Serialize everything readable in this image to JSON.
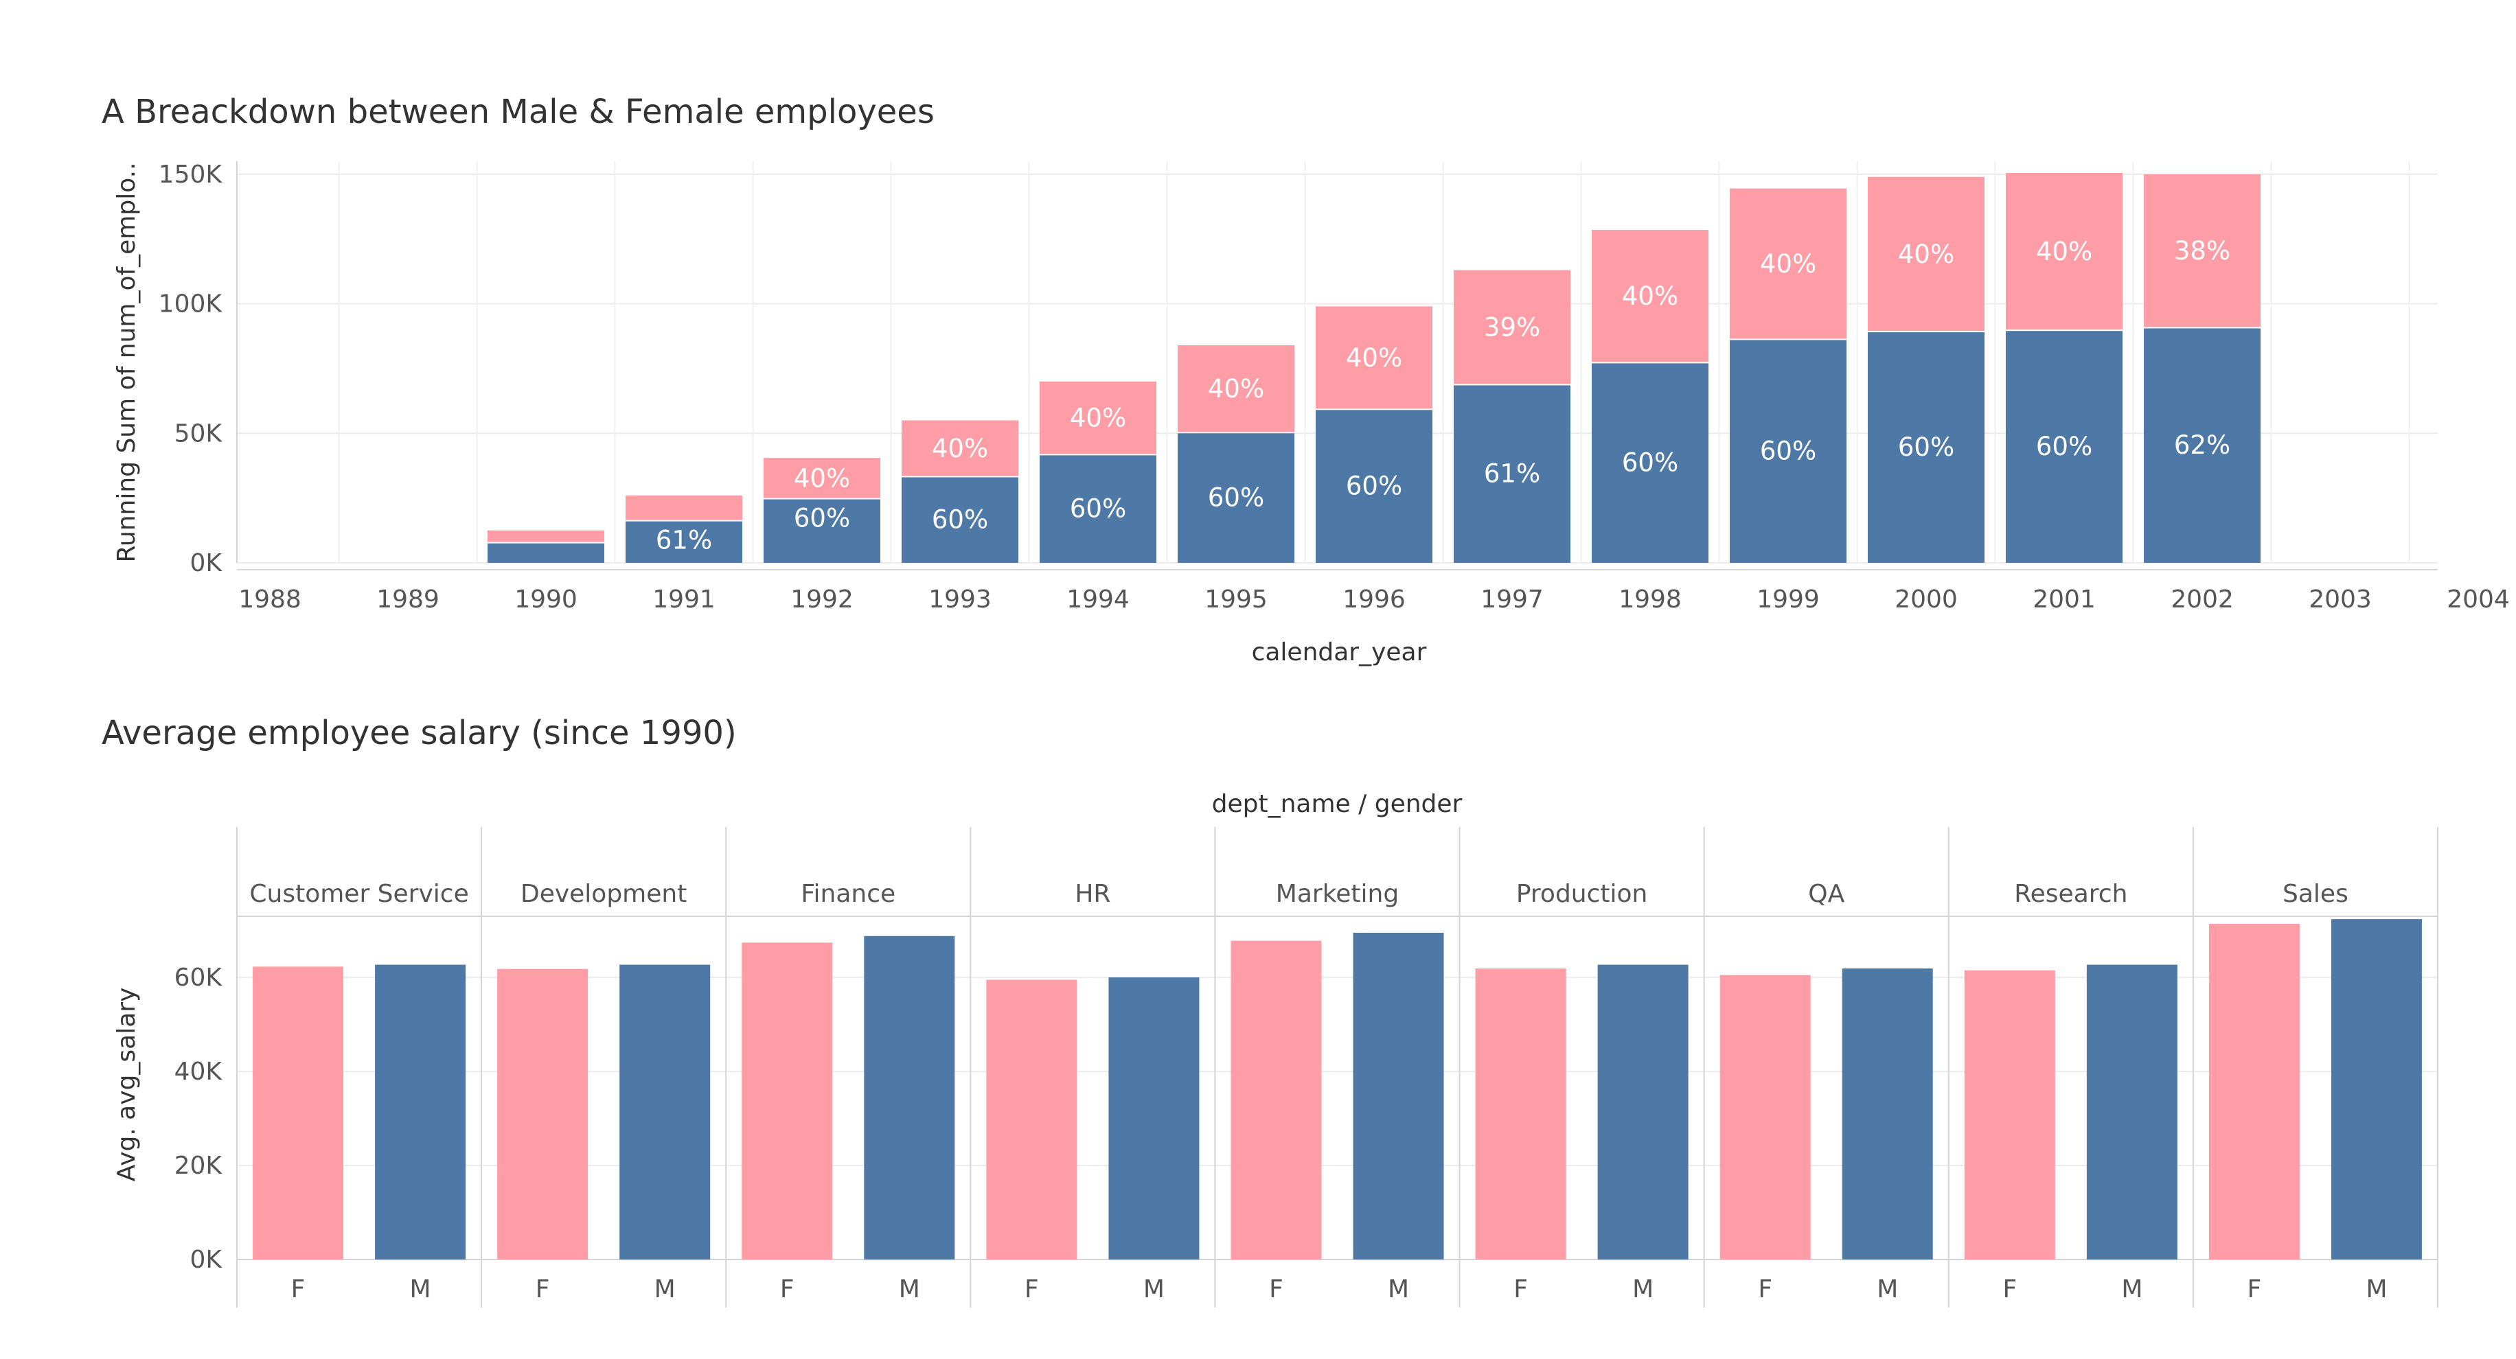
{
  "chart_data": [
    {
      "type": "bar",
      "stacked": true,
      "title": "A Breackdown between Male & Female employees",
      "xlabel": "calendar_year",
      "ylabel": "Running Sum of num_of_emplo..",
      "categories": [
        "1988",
        "1989",
        "1990",
        "1991",
        "1992",
        "1993",
        "1994",
        "1995",
        "1996",
        "1997",
        "1998",
        "1999",
        "2000",
        "2001",
        "2002",
        "2003",
        "2004"
      ],
      "ylim": [
        0,
        155000
      ],
      "yticks": [
        0,
        50000,
        100000,
        150000
      ],
      "ytick_labels": [
        "0K",
        "50K",
        "100K",
        "150K"
      ],
      "grid": true,
      "series": [
        {
          "name": "M",
          "color": "#4e79a7",
          "values": [
            null,
            null,
            7500,
            16000,
            24500,
            33000,
            41500,
            50000,
            59000,
            68500,
            77000,
            86000,
            89000,
            89500,
            90500,
            null,
            null
          ],
          "labels": [
            "",
            "",
            "",
            "61%",
            "60%",
            "60%",
            "60%",
            "60%",
            "60%",
            "61%",
            "60%",
            "60%",
            "60%",
            "60%",
            "62%",
            "",
            ""
          ]
        },
        {
          "name": "F",
          "color": "#ff9da7",
          "values": [
            null,
            null,
            5000,
            10000,
            16000,
            22000,
            28500,
            34000,
            40000,
            44500,
            51500,
            58500,
            60000,
            61000,
            59500,
            null,
            null
          ],
          "labels": [
            "",
            "",
            "",
            "",
            "40%",
            "40%",
            "40%",
            "40%",
            "40%",
            "39%",
            "40%",
            "40%",
            "40%",
            "40%",
            "38%",
            "",
            ""
          ]
        }
      ]
    },
    {
      "type": "bar",
      "title": "Average employee salary (since 1990)",
      "header": "dept_name / gender",
      "ylabel": "Avg. avg_salary",
      "ylim": [
        0,
        73000
      ],
      "yticks": [
        0,
        20000,
        40000,
        60000
      ],
      "ytick_labels": [
        "0K",
        "20K",
        "40K",
        "60K"
      ],
      "grid": true,
      "colors": {
        "F": "#ff9da7",
        "M": "#4e79a7"
      },
      "departments": [
        {
          "name": "Customer Service",
          "F": 62300,
          "M": 62700
        },
        {
          "name": "Development",
          "F": 61800,
          "M": 62700
        },
        {
          "name": "Finance",
          "F": 67400,
          "M": 68800
        },
        {
          "name": "HR",
          "F": 59500,
          "M": 60000
        },
        {
          "name": "Marketing",
          "F": 67800,
          "M": 69500
        },
        {
          "name": "Production",
          "F": 61900,
          "M": 62700
        },
        {
          "name": "QA",
          "F": 60500,
          "M": 61900
        },
        {
          "name": "Research",
          "F": 61500,
          "M": 62700
        },
        {
          "name": "Sales",
          "F": 71400,
          "M": 72400
        }
      ],
      "genders": [
        "F",
        "M"
      ]
    }
  ]
}
